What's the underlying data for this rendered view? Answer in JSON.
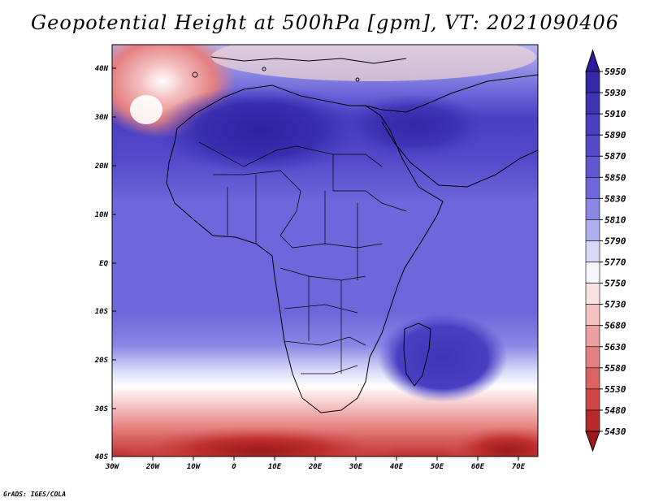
{
  "title": "Geopotential Height at 500hPa [gpm], VT: 2021090406",
  "credit": "GrADS: IGES/COLA",
  "lat_labels": [
    "40N",
    "30N",
    "20N",
    "10N",
    "EQ",
    "10S",
    "20S",
    "30S",
    "40S"
  ],
  "lon_labels": [
    "30W",
    "20W",
    "10W",
    "0",
    "10E",
    "20E",
    "30E",
    "40E",
    "50E",
    "60E",
    "70E"
  ],
  "colorbar": {
    "levels": [
      "5950",
      "5930",
      "5910",
      "5890",
      "5870",
      "5850",
      "5830",
      "5810",
      "5790",
      "5770",
      "5750",
      "5730",
      "5680",
      "5630",
      "5580",
      "5530",
      "5480",
      "5430"
    ],
    "colors": [
      "#2a1c9a",
      "#3428a8",
      "#3f33b6",
      "#4a3fc2",
      "#5549ca",
      "#6257d2",
      "#6e66da",
      "#8a86e4",
      "#aeaef0",
      "#d8d8f8",
      "#f6f6ff",
      "#fbe2e2",
      "#f4c0c0",
      "#eda0a0",
      "#e58080",
      "#dd6262",
      "#d04646",
      "#b82a2a",
      "#9a1a1a"
    ]
  },
  "map_data": {
    "field": "Geopotential Height at 500hPa",
    "units": "gpm",
    "valid_time": "2021090406",
    "lon_range": [
      -30,
      75
    ],
    "lat_range": [
      -40,
      45
    ]
  }
}
